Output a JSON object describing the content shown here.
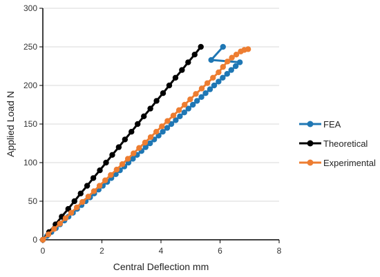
{
  "chart_data": {
    "type": "line",
    "title": "",
    "xlabel": "Central Deflection mm",
    "ylabel": "Applied Load N",
    "xlim": [
      0,
      8
    ],
    "ylim": [
      0,
      300
    ],
    "xticks": [
      0,
      2,
      4,
      6,
      8
    ],
    "yticks": [
      0,
      50,
      100,
      150,
      200,
      250,
      300
    ],
    "grid": {
      "horizontal": true,
      "vertical": false
    },
    "legend_position": "right",
    "series": [
      {
        "name": "FEA",
        "color": "#1f77b4",
        "points": [
          [
            0.0,
            0
          ],
          [
            0.14,
            5
          ],
          [
            0.29,
            10
          ],
          [
            0.44,
            15
          ],
          [
            0.58,
            20
          ],
          [
            0.73,
            25
          ],
          [
            0.87,
            30
          ],
          [
            1.02,
            35
          ],
          [
            1.16,
            40
          ],
          [
            1.31,
            45
          ],
          [
            1.45,
            50
          ],
          [
            1.6,
            55
          ],
          [
            1.74,
            60
          ],
          [
            1.89,
            65
          ],
          [
            2.03,
            70
          ],
          [
            2.18,
            75
          ],
          [
            2.32,
            80
          ],
          [
            2.47,
            85
          ],
          [
            2.61,
            90
          ],
          [
            2.76,
            95
          ],
          [
            2.9,
            100
          ],
          [
            3.05,
            105
          ],
          [
            3.19,
            110
          ],
          [
            3.34,
            115
          ],
          [
            3.48,
            120
          ],
          [
            3.63,
            125
          ],
          [
            3.77,
            130
          ],
          [
            3.92,
            135
          ],
          [
            4.06,
            140
          ],
          [
            4.21,
            145
          ],
          [
            4.35,
            150
          ],
          [
            4.5,
            155
          ],
          [
            4.64,
            160
          ],
          [
            4.79,
            165
          ],
          [
            4.93,
            170
          ],
          [
            5.08,
            175
          ],
          [
            5.22,
            180
          ],
          [
            5.37,
            185
          ],
          [
            5.51,
            190
          ],
          [
            5.66,
            195
          ],
          [
            5.8,
            200
          ],
          [
            5.95,
            205
          ],
          [
            6.09,
            210
          ],
          [
            6.24,
            215
          ],
          [
            6.38,
            220
          ],
          [
            6.53,
            225
          ],
          [
            6.67,
            230
          ],
          [
            5.7,
            233
          ],
          [
            6.1,
            250
          ]
        ]
      },
      {
        "name": "Theoretical",
        "color": "#000000",
        "points": [
          [
            0.0,
            0
          ],
          [
            0.21,
            10
          ],
          [
            0.43,
            20
          ],
          [
            0.64,
            30
          ],
          [
            0.86,
            40
          ],
          [
            1.07,
            50
          ],
          [
            1.28,
            60
          ],
          [
            1.5,
            70
          ],
          [
            1.71,
            80
          ],
          [
            1.93,
            90
          ],
          [
            2.14,
            100
          ],
          [
            2.35,
            110
          ],
          [
            2.57,
            120
          ],
          [
            2.78,
            130
          ],
          [
            3.0,
            140
          ],
          [
            3.21,
            150
          ],
          [
            3.42,
            160
          ],
          [
            3.64,
            170
          ],
          [
            3.85,
            180
          ],
          [
            4.07,
            190
          ],
          [
            4.28,
            200
          ],
          [
            4.49,
            210
          ],
          [
            4.71,
            220
          ],
          [
            4.92,
            230
          ],
          [
            5.14,
            240
          ],
          [
            5.35,
            250
          ]
        ]
      },
      {
        "name": "Experimental",
        "color": "#ed7d31",
        "points": [
          [
            0.0,
            0
          ],
          [
            0.19,
            7
          ],
          [
            0.38,
            14
          ],
          [
            0.58,
            21
          ],
          [
            0.77,
            28
          ],
          [
            0.96,
            35
          ],
          [
            1.15,
            42
          ],
          [
            1.34,
            49
          ],
          [
            1.54,
            56
          ],
          [
            1.73,
            63
          ],
          [
            1.92,
            70
          ],
          [
            2.11,
            77
          ],
          [
            2.3,
            84
          ],
          [
            2.5,
            91
          ],
          [
            2.69,
            98
          ],
          [
            2.88,
            105
          ],
          [
            3.07,
            112
          ],
          [
            3.26,
            119
          ],
          [
            3.46,
            126
          ],
          [
            3.65,
            133
          ],
          [
            3.84,
            140
          ],
          [
            4.03,
            147
          ],
          [
            4.22,
            154
          ],
          [
            4.42,
            161
          ],
          [
            4.61,
            168
          ],
          [
            4.8,
            175
          ],
          [
            4.99,
            182
          ],
          [
            5.18,
            189
          ],
          [
            5.38,
            196
          ],
          [
            5.57,
            203
          ],
          [
            5.76,
            210
          ],
          [
            5.95,
            217
          ],
          [
            6.1,
            224
          ],
          [
            6.25,
            231
          ],
          [
            6.4,
            236
          ],
          [
            6.55,
            240
          ],
          [
            6.7,
            244
          ],
          [
            6.82,
            246
          ],
          [
            6.95,
            247
          ]
        ]
      }
    ]
  }
}
